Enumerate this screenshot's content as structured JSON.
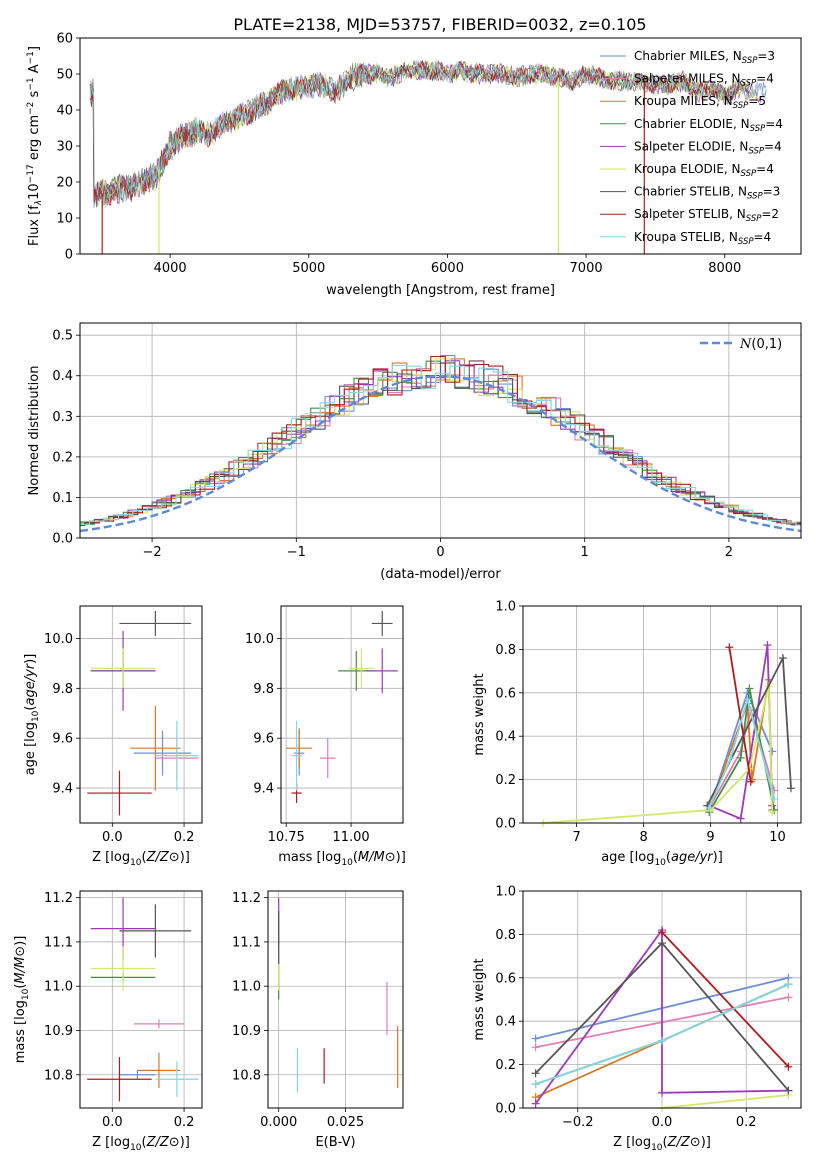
{
  "figure": {
    "title": "PLATE=2138, MJD=53757, FIBERID=0032, z=0.105"
  },
  "legend_entries": [
    {
      "label": "Chabrier MILES, N",
      "sub": "SSP",
      "suffix": "=3",
      "color": "#6b8fd8"
    },
    {
      "label": "Salpeter MILES, N",
      "sub": "SSP",
      "suffix": "=4",
      "color": "#e07fb8"
    },
    {
      "label": "Kroupa MILES, N",
      "sub": "SSP",
      "suffix": "=5",
      "color": "#d7782a"
    },
    {
      "label": "Chabrier ELODIE, N",
      "sub": "SSP",
      "suffix": "=4",
      "color": "#4a8a4a"
    },
    {
      "label": "Salpeter ELODIE, N",
      "sub": "SSP",
      "suffix": "=4",
      "color": "#9c3bb8"
    },
    {
      "label": "Kroupa ELODIE, N",
      "sub": "SSP",
      "suffix": "=4",
      "color": "#d2e86a"
    },
    {
      "label": "Chabrier STELIB, N",
      "sub": "SSP",
      "suffix": "=3",
      "color": "#555555"
    },
    {
      "label": "Salpeter STELIB, N",
      "sub": "SSP",
      "suffix": "=2",
      "color": "#b01c1c"
    },
    {
      "label": "Kroupa STELIB, N",
      "sub": "SSP",
      "suffix": "=4",
      "color": "#86d6e0"
    }
  ],
  "chart_data": [
    {
      "id": "spectrum",
      "type": "line",
      "xlabel": "wavelength [Angstrom, rest frame]",
      "ylabel_parts": [
        "Flux [f",
        "λ",
        "10",
        "−17",
        " erg cm",
        "−2",
        " s",
        "−1",
        " A",
        "−1",
        "]"
      ],
      "xlim": [
        3350,
        8550
      ],
      "ylim": [
        0,
        60
      ],
      "xticks": [
        "4000",
        "5000",
        "6000",
        "7000",
        "8000"
      ],
      "yticks": [
        "0",
        "10",
        "20",
        "30",
        "40",
        "50",
        "60"
      ],
      "continuum": [
        [
          3450,
          16
        ],
        [
          3600,
          18
        ],
        [
          3750,
          19
        ],
        [
          3900,
          22
        ],
        [
          4000,
          30
        ],
        [
          4100,
          33
        ],
        [
          4200,
          34
        ],
        [
          4300,
          33
        ],
        [
          4400,
          37
        ],
        [
          4500,
          38
        ],
        [
          4600,
          40
        ],
        [
          4700,
          42
        ],
        [
          4800,
          45
        ],
        [
          4900,
          46
        ],
        [
          5000,
          47
        ],
        [
          5100,
          47
        ],
        [
          5200,
          45
        ],
        [
          5300,
          49
        ],
        [
          5400,
          50
        ],
        [
          5500,
          50
        ],
        [
          5600,
          49
        ],
        [
          5700,
          51
        ],
        [
          5800,
          51
        ],
        [
          5900,
          51
        ],
        [
          6000,
          50
        ],
        [
          6100,
          51
        ],
        [
          6200,
          50
        ],
        [
          6300,
          50
        ],
        [
          6400,
          50
        ],
        [
          6500,
          49
        ],
        [
          6600,
          50
        ],
        [
          6700,
          50
        ],
        [
          6800,
          49
        ],
        [
          6900,
          48
        ],
        [
          7000,
          50
        ],
        [
          7100,
          49
        ],
        [
          7200,
          48
        ],
        [
          7300,
          48
        ],
        [
          7400,
          48
        ],
        [
          7500,
          47
        ],
        [
          7600,
          47
        ],
        [
          7700,
          48
        ],
        [
          7800,
          45
        ],
        [
          7900,
          46
        ],
        [
          8000,
          44
        ],
        [
          8100,
          46
        ],
        [
          8200,
          45
        ],
        [
          8300,
          45
        ]
      ],
      "drop_lines": [
        {
          "x": 3510,
          "series": 7
        },
        {
          "x": 3920,
          "series": 5
        },
        {
          "x": 6800,
          "series": 5
        },
        {
          "x": 7420,
          "series": 7
        }
      ]
    },
    {
      "id": "residuals",
      "type": "histogram",
      "xlabel": "(data-model)/error",
      "ylabel": "Normed distribution",
      "xlim": [
        -2.5,
        2.5
      ],
      "ylim": [
        0,
        0.53
      ],
      "xticks": [
        "−2",
        "−1",
        "0",
        "1",
        "2"
      ],
      "yticks": [
        "0.0",
        "0.1",
        "0.2",
        "0.3",
        "0.4",
        "0.5"
      ],
      "legend_label": "N(0, 1)",
      "grid": true
    },
    {
      "id": "age_vs_Z",
      "type": "errorbar",
      "xlabel": "Z [log10(Z/Z⊙)]",
      "ylabel": "age [log10(age/yr)]",
      "xlim": [
        -0.09,
        0.25
      ],
      "ylim": [
        9.26,
        10.13
      ],
      "xticks": [
        "0.0",
        "0.2"
      ],
      "yticks": [
        "9.4",
        "9.6",
        "9.8",
        "10.0"
      ],
      "points": [
        {
          "series": 0,
          "x": 0.14,
          "y": 9.54,
          "xerr": 0.08,
          "yerr": 0.09
        },
        {
          "series": 1,
          "x": 0.18,
          "y": 9.52,
          "xerr": 0.06,
          "yerr": 0.09
        },
        {
          "series": 2,
          "x": 0.12,
          "y": 9.56,
          "xerr": 0.07,
          "yerr": 0.17
        },
        {
          "series": 3,
          "x": 0.03,
          "y": 9.87,
          "xerr": 0.09,
          "yerr": 0.08
        },
        {
          "series": 4,
          "x": 0.03,
          "y": 9.87,
          "xerr": 0.09,
          "yerr": 0.16
        },
        {
          "series": 5,
          "x": 0.03,
          "y": 9.88,
          "xerr": 0.09,
          "yerr": 0.08
        },
        {
          "series": 6,
          "x": 0.12,
          "y": 10.06,
          "xerr": 0.1,
          "yerr": 0.05
        },
        {
          "series": 7,
          "x": 0.02,
          "y": 9.38,
          "xerr": 0.09,
          "yerr": 0.09
        },
        {
          "series": 8,
          "x": 0.18,
          "y": 9.53,
          "xerr": 0.06,
          "yerr": 0.14
        }
      ]
    },
    {
      "id": "age_vs_mass",
      "type": "errorbar",
      "xlabel": "mass [log10(M/M⊙)]",
      "ylabel": "",
      "xlim": [
        10.73,
        11.2
      ],
      "ylim": [
        9.26,
        10.13
      ],
      "xticks": [
        "10.75",
        "11.00"
      ],
      "yticks": [
        "9.4",
        "9.6",
        "9.8",
        "10.0"
      ],
      "points": [
        {
          "series": 0,
          "x": 10.8,
          "y": 9.54,
          "xerr": 0.02,
          "yerr": 0.09
        },
        {
          "series": 1,
          "x": 10.91,
          "y": 9.52,
          "xerr": 0.03,
          "yerr": 0.08
        },
        {
          "series": 2,
          "x": 10.8,
          "y": 9.56,
          "xerr": 0.05,
          "yerr": 0.08
        },
        {
          "series": 3,
          "x": 11.02,
          "y": 9.87,
          "xerr": 0.07,
          "yerr": 0.08
        },
        {
          "series": 4,
          "x": 11.12,
          "y": 9.87,
          "xerr": 0.06,
          "yerr": 0.09
        },
        {
          "series": 5,
          "x": 11.04,
          "y": 9.88,
          "xerr": 0.05,
          "yerr": 0.08
        },
        {
          "series": 6,
          "x": 11.12,
          "y": 10.06,
          "xerr": 0.04,
          "yerr": 0.05
        },
        {
          "series": 7,
          "x": 10.79,
          "y": 9.38,
          "xerr": 0.02,
          "yerr": 0.04
        },
        {
          "series": 8,
          "x": 10.79,
          "y": 9.53,
          "xerr": 0.02,
          "yerr": 0.14
        }
      ]
    },
    {
      "id": "mass_weight_vs_age",
      "type": "line",
      "xlabel": "age [log10(age/yr)]",
      "ylabel": "mass weight",
      "xlim": [
        6.2,
        10.35
      ],
      "ylim": [
        0,
        1.0
      ],
      "xticks": [
        "7",
        "8",
        "9",
        "10"
      ],
      "yticks": [
        "0.0",
        "0.2",
        "0.4",
        "0.6",
        "0.8",
        "1.0"
      ],
      "grid": true,
      "series": [
        {
          "series": 0,
          "points": [
            [
              8.98,
              0.06
            ],
            [
              9.55,
              0.6
            ],
            [
              9.92,
              0.33
            ]
          ]
        },
        {
          "series": 1,
          "points": [
            [
              9.0,
              0.08
            ],
            [
              9.45,
              0.33
            ],
            [
              9.6,
              0.52
            ],
            [
              9.95,
              0.15
            ]
          ]
        },
        {
          "series": 2,
          "points": [
            [
              8.98,
              0.06
            ],
            [
              9.55,
              0.55
            ],
            [
              9.62,
              0.2
            ],
            [
              9.87,
              0.66
            ],
            [
              9.92,
              0.06
            ]
          ]
        },
        {
          "series": 3,
          "points": [
            [
              8.98,
              0.05
            ],
            [
              9.45,
              0.3
            ],
            [
              9.58,
              0.62
            ],
            [
              9.95,
              0.06
            ]
          ]
        },
        {
          "series": 4,
          "points": [
            [
              8.98,
              0.08
            ],
            [
              9.45,
              0.02
            ],
            [
              9.85,
              0.82
            ],
            [
              9.92,
              0.08
            ]
          ]
        },
        {
          "series": 5,
          "points": [
            [
              6.5,
              0.0
            ],
            [
              9.0,
              0.06
            ],
            [
              9.58,
              0.25
            ],
            [
              9.87,
              0.63
            ],
            [
              9.92,
              0.05
            ]
          ]
        },
        {
          "series": 6,
          "points": [
            [
              8.95,
              0.08
            ],
            [
              10.08,
              0.76
            ],
            [
              10.2,
              0.16
            ]
          ]
        },
        {
          "series": 7,
          "points": [
            [
              9.28,
              0.81
            ],
            [
              9.6,
              0.19
            ]
          ]
        },
        {
          "series": 8,
          "points": [
            [
              8.98,
              0.07
            ],
            [
              9.3,
              0.3
            ],
            [
              9.55,
              0.57
            ],
            [
              9.95,
              0.11
            ]
          ]
        }
      ]
    },
    {
      "id": "mass_vs_Z",
      "type": "errorbar",
      "xlabel": "Z [log10(Z/Z⊙)]",
      "ylabel": "mass [log10(M/M⊙)]",
      "xlim": [
        -0.09,
        0.25
      ],
      "ylim": [
        10.725,
        11.215
      ],
      "xticks": [
        "0.0",
        "0.2"
      ],
      "yticks": [
        "10.8",
        "10.9",
        "11.0",
        "11.1",
        "11.2"
      ],
      "points": [
        {
          "series": 0,
          "x": 0.07,
          "y": 10.8,
          "xerr": 0.05,
          "yerr": 0.01
        },
        {
          "series": 1,
          "x": 0.13,
          "y": 10.915,
          "xerr": 0.07,
          "yerr": 0.01
        },
        {
          "series": 2,
          "x": 0.13,
          "y": 10.81,
          "xerr": 0.06,
          "yerr": 0.04
        },
        {
          "series": 3,
          "x": 0.03,
          "y": 11.02,
          "xerr": 0.09,
          "yerr": 0.01
        },
        {
          "series": 4,
          "x": 0.03,
          "y": 11.13,
          "xerr": 0.09,
          "yerr": 0.07
        },
        {
          "series": 5,
          "x": 0.03,
          "y": 11.04,
          "xerr": 0.09,
          "yerr": 0.05
        },
        {
          "series": 6,
          "x": 0.12,
          "y": 11.125,
          "xerr": 0.1,
          "yerr": 0.06
        },
        {
          "series": 7,
          "x": 0.02,
          "y": 10.79,
          "xerr": 0.09,
          "yerr": 0.05
        },
        {
          "series": 8,
          "x": 0.18,
          "y": 10.79,
          "xerr": 0.06,
          "yerr": 0.04
        }
      ]
    },
    {
      "id": "mass_vs_ebv",
      "type": "errorbar",
      "xlabel": "E(B-V)",
      "ylabel": "",
      "xlim": [
        -0.004,
        0.0465
      ],
      "ylim": [
        10.725,
        11.215
      ],
      "xticks": [
        "0.000",
        "0.025"
      ],
      "yticks": [
        "10.8",
        "10.9",
        "11.0",
        "11.1",
        "11.2"
      ],
      "points": [
        {
          "series": 1,
          "x": 0.0405,
          "y": 10.95,
          "xerr": 0,
          "yerr": 0.06
        },
        {
          "series": 2,
          "x": 0.0445,
          "y": 10.84,
          "xerr": 0,
          "yerr": 0.07
        },
        {
          "series": 3,
          "x": 0.0,
          "y": 11.02,
          "xerr": 0,
          "yerr": 0.05
        },
        {
          "series": 4,
          "x": 0.0,
          "y": 11.13,
          "xerr": 0,
          "yerr": 0.07
        },
        {
          "series": 5,
          "x": 0.0,
          "y": 11.04,
          "xerr": 0,
          "yerr": 0.05
        },
        {
          "series": 6,
          "x": 0.0,
          "y": 11.11,
          "xerr": 0,
          "yerr": 0.06
        },
        {
          "series": 7,
          "x": 0.017,
          "y": 10.82,
          "xerr": 0,
          "yerr": 0.04
        },
        {
          "series": 8,
          "x": 0.007,
          "y": 10.81,
          "xerr": 0,
          "yerr": 0.05
        }
      ]
    },
    {
      "id": "mass_weight_vs_Z",
      "type": "line",
      "xlabel": "Z [log10(Z/Z⊙)]",
      "ylabel": "mass weight",
      "xlim": [
        -0.33,
        0.33
      ],
      "ylim": [
        0,
        1.0
      ],
      "xticks": [
        "−0.2",
        "0.0",
        "0.2"
      ],
      "yticks": [
        "0.0",
        "0.2",
        "0.4",
        "0.6",
        "0.8",
        "1.0"
      ],
      "grid": true,
      "series": [
        {
          "series": 0,
          "points": [
            [
              -0.3,
              0.32
            ],
            [
              0.3,
              0.6
            ]
          ]
        },
        {
          "series": 1,
          "points": [
            [
              -0.3,
              0.28
            ],
            [
              0.3,
              0.51
            ]
          ]
        },
        {
          "series": 2,
          "points": [
            [
              -0.3,
              0.05
            ],
            [
              0.0,
              0.31
            ],
            [
              0.3,
              0.57
            ]
          ]
        },
        {
          "series": 3,
          "points": [
            [
              -0.3,
              0.11
            ],
            [
              0.0,
              0.31
            ],
            [
              0.3,
              0.57
            ]
          ]
        },
        {
          "series": 4,
          "points": [
            [
              -0.3,
              0.02
            ],
            [
              0.0,
              0.82
            ],
            [
              0.0,
              0.07
            ],
            [
              0.3,
              0.08
            ]
          ]
        },
        {
          "series": 5,
          "points": [
            [
              0.0,
              0.0
            ],
            [
              0.3,
              0.06
            ]
          ]
        },
        {
          "series": 6,
          "points": [
            [
              -0.3,
              0.16
            ],
            [
              0.0,
              0.76
            ],
            [
              0.3,
              0.08
            ]
          ]
        },
        {
          "series": 7,
          "points": [
            [
              0.0,
              0.81
            ],
            [
              0.3,
              0.19
            ]
          ]
        },
        {
          "series": 8,
          "points": [
            [
              -0.3,
              0.11
            ],
            [
              0.0,
              0.31
            ],
            [
              0.3,
              0.57
            ]
          ]
        }
      ]
    }
  ]
}
